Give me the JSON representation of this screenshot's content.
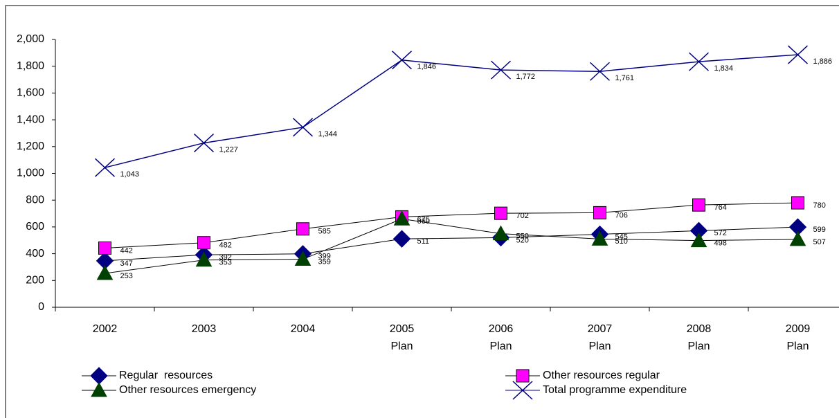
{
  "chart_data": {
    "type": "line",
    "categories": [
      "2002",
      "2003",
      "2004",
      "2005 Plan",
      "2006 Plan",
      "2007 Plan",
      "2008 Plan",
      "2009 Plan"
    ],
    "ylim": [
      0,
      2000
    ],
    "yticks": [
      0,
      200,
      400,
      600,
      800,
      {
        "value": 1000,
        "label": "1,000"
      },
      {
        "value": 1200,
        "label": "1,200"
      },
      {
        "value": 1400,
        "label": "1,400"
      },
      {
        "value": 1600,
        "label": "1,600"
      },
      {
        "value": 1800,
        "label": "1,800"
      },
      {
        "value": 2000,
        "label": "2,000"
      }
    ],
    "series": [
      {
        "name": "Regular  resources",
        "color": "#000080",
        "marker": "diamond",
        "values": [
          347,
          392,
          399,
          511,
          520,
          545,
          572,
          599
        ]
      },
      {
        "name": "Other resources regular",
        "color": "#ff00ff",
        "marker": "square",
        "values": [
          442,
          482,
          585,
          675,
          702,
          706,
          764,
          780
        ]
      },
      {
        "name": "Other resources emergency",
        "color": "#004000",
        "marker": "triangle",
        "values": [
          253,
          353,
          359,
          660,
          550,
          510,
          498,
          507
        ]
      },
      {
        "name": "Total programme expenditure",
        "color": "#000080",
        "marker": "x",
        "values": [
          1043,
          1227,
          1344,
          1846,
          1772,
          1761,
          1834,
          1886
        ],
        "value_labels": [
          "1,043",
          "1,227",
          "1,344",
          "1,846",
          "1,772",
          "1,761",
          "1,834",
          "1,886"
        ]
      }
    ]
  }
}
